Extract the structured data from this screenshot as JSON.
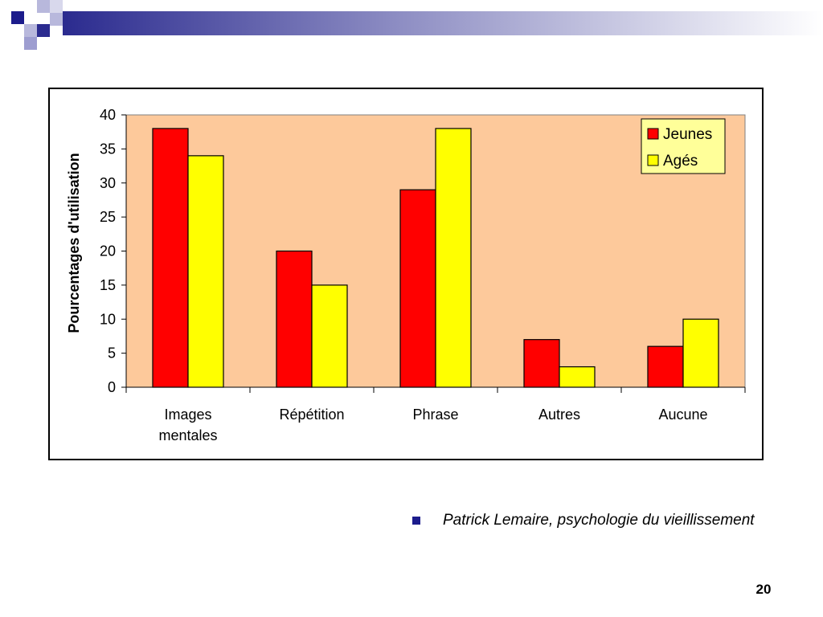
{
  "slide": {
    "footer_text": "Patrick Lemaire, psychologie du vieillissement",
    "page_number": "20",
    "accent_color": "#1c1c8c"
  },
  "chart_data": {
    "type": "bar",
    "title": "",
    "xlabel": "",
    "ylabel": "Pourcentages d'utilisation",
    "categories": [
      "Images mentales",
      "Répétition",
      "Phrase",
      "Autres",
      "Aucune"
    ],
    "series": [
      {
        "name": "Jeunes",
        "color": "#ff0000",
        "values": [
          38,
          20,
          29,
          7,
          6
        ]
      },
      {
        "name": "Agés",
        "color": "#ffff00",
        "values": [
          34,
          15,
          38,
          3,
          10
        ]
      }
    ],
    "ylim": [
      0,
      40
    ],
    "yticks": [
      0,
      5,
      10,
      15,
      20,
      25,
      30,
      35,
      40
    ],
    "plot_background": "#fdc99b",
    "grid": false,
    "legend_position": "top-right"
  }
}
